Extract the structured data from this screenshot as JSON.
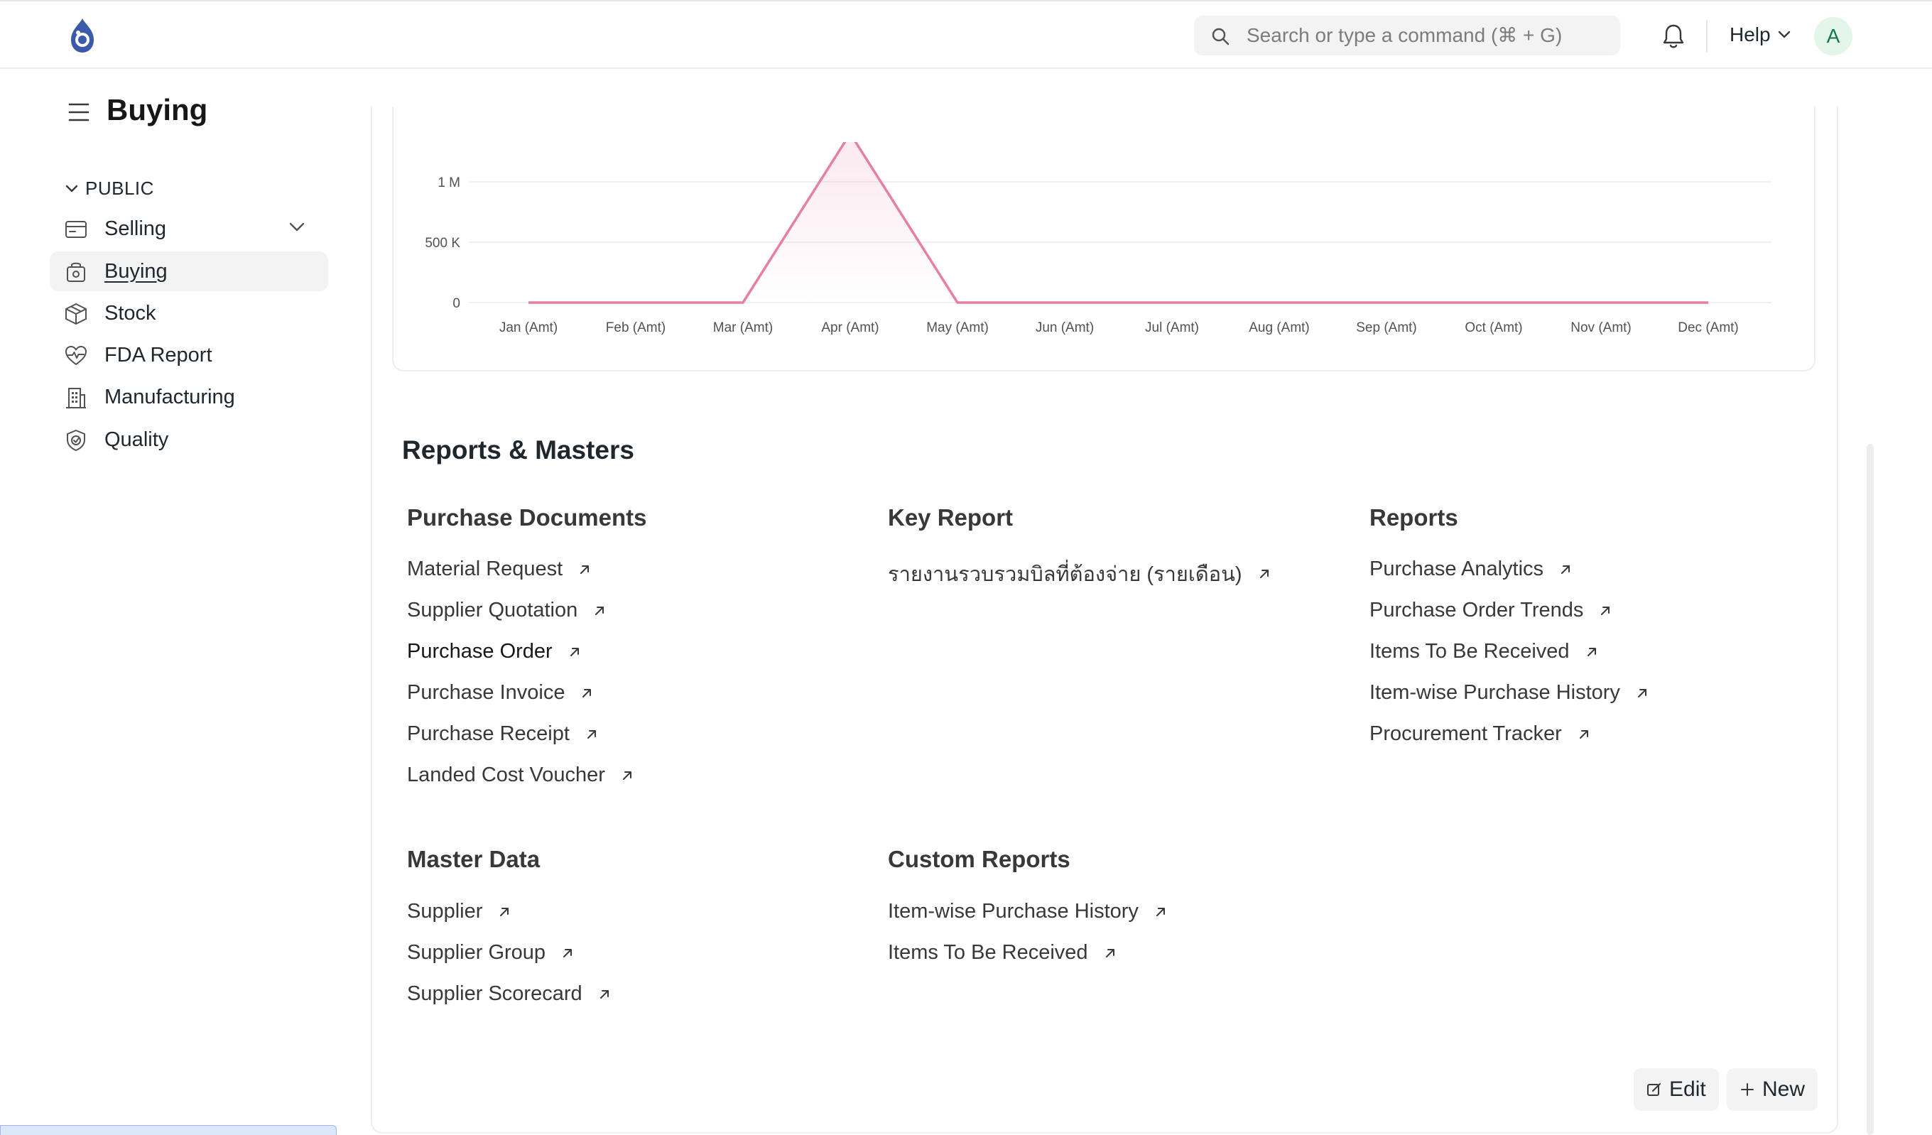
{
  "navbar": {
    "search_placeholder": "Search or type a command (⌘ + G)",
    "help_label": "Help",
    "avatar_letter": "A",
    "icons": [
      "app-logo-icon",
      "search-icon",
      "bell-icon",
      "chevron-down-icon"
    ]
  },
  "page": {
    "title": "Buying"
  },
  "sidebar": {
    "section_label": "PUBLIC",
    "items": [
      {
        "label": "Selling",
        "icon": "card-icon",
        "has_caret": true
      },
      {
        "label": "Buying",
        "icon": "basket-icon",
        "active": true
      },
      {
        "label": "Stock",
        "icon": "box-icon"
      },
      {
        "label": "FDA Report",
        "icon": "heart-pulse-icon"
      },
      {
        "label": "Manufacturing",
        "icon": "building-icon"
      },
      {
        "label": "Quality",
        "icon": "shield-check-icon"
      }
    ]
  },
  "chart_data": {
    "type": "line",
    "categories": [
      "Jan (Amt)",
      "Feb (Amt)",
      "Mar (Amt)",
      "Apr (Amt)",
      "May (Amt)",
      "Jun (Amt)",
      "Jul (Amt)",
      "Aug (Amt)",
      "Sep (Amt)",
      "Oct (Amt)",
      "Nov (Amt)",
      "Dec (Amt)"
    ],
    "series": [
      {
        "values": [
          0,
          0,
          0,
          1400000,
          0,
          0,
          0,
          0,
          0,
          0,
          0,
          0
        ],
        "color": "#e67fa3"
      }
    ],
    "y_ticks": [
      {
        "value": 0,
        "label": "0"
      },
      {
        "value": 500000,
        "label": "500 K"
      },
      {
        "value": 1000000,
        "label": "1 M"
      }
    ],
    "ylim": [
      0,
      1000000
    ],
    "grid": true,
    "title": "",
    "xlabel": "",
    "ylabel": ""
  },
  "reports": {
    "title": "Reports & Masters",
    "cards": [
      {
        "title": "Purchase Documents",
        "links": [
          "Material Request",
          "Supplier Quotation",
          "Purchase Order",
          "Purchase Invoice",
          "Purchase Receipt",
          "Landed Cost Voucher"
        ]
      },
      {
        "title": "Key Report",
        "links": [
          "รายงานรวบรวมบิลที่ต้องจ่าย (รายเดือน)"
        ]
      },
      {
        "title": "Reports",
        "links": [
          "Purchase Analytics",
          "Purchase Order Trends",
          "Items To Be Received",
          "Item-wise Purchase History",
          "Procurement Tracker"
        ]
      },
      {
        "title": "Master Data",
        "links": [
          "Supplier",
          "Supplier Group",
          "Supplier Scorecard"
        ]
      },
      {
        "title": "Custom Reports",
        "links": [
          "Item-wise Purchase History",
          "Items To Be Received"
        ]
      }
    ]
  },
  "actions": {
    "edit_label": "Edit",
    "new_label": "New"
  }
}
